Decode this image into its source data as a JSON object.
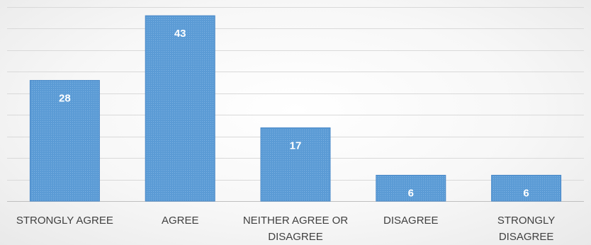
{
  "chart_data": {
    "type": "bar",
    "categories": [
      [
        "STRONGLY AGREE"
      ],
      [
        "AGREE"
      ],
      [
        "NEITHER AGREE OR",
        "DISAGREE"
      ],
      [
        "DISAGREE"
      ],
      [
        "STRONGLY",
        "DISAGREE"
      ]
    ],
    "values": [
      28,
      43,
      17,
      6,
      6
    ],
    "data_labels": [
      "28",
      "43",
      "17",
      "6",
      "6"
    ],
    "ylim": [
      0,
      45
    ],
    "y_gridline_step": 5,
    "grid": true,
    "legend": "none",
    "title": "",
    "xlabel": "",
    "ylabel": ""
  },
  "colors": {
    "bar_fill": "#5b9bd5",
    "bar_pattern_dot": "#7fb3e3",
    "bar_edge": "#4a89c8",
    "gridline": "#d9d9d9",
    "axis_line": "#bfbfbf",
    "category_text": "#404040",
    "value_text": "#ffffff"
  }
}
